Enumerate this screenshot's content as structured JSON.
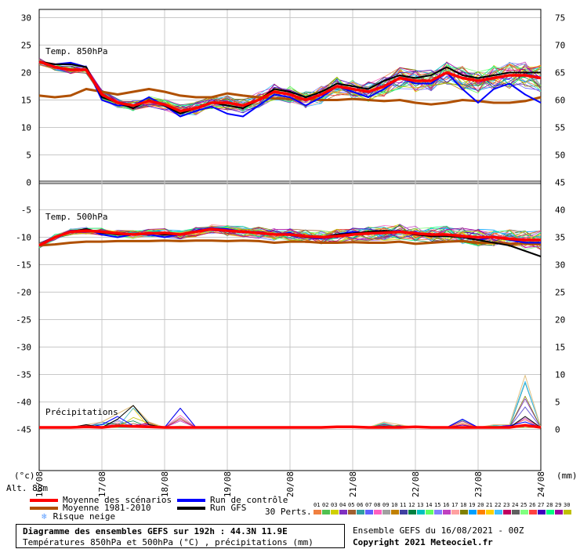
{
  "panels": {
    "temp850_label": "Temp. 850hPa",
    "temp500_label": "Temp. 500hPa",
    "precip_label": "Précipitations"
  },
  "axes": {
    "left_unit": "(°c)",
    "right_unit": "(mm)",
    "altitude": "Alt. 88m",
    "left_ticks": [
      "30",
      "25",
      "20",
      "15",
      "10",
      "5",
      "0",
      "-5",
      "-10",
      "-15",
      "-20",
      "-25",
      "-30",
      "-35",
      "-40",
      "-45"
    ],
    "right_ticks": [
      "75",
      "70",
      "65",
      "60",
      "55",
      "50",
      "45",
      "40",
      "35",
      "30",
      "25",
      "20",
      "15",
      "10",
      "5",
      "0"
    ],
    "date_ticks": [
      "16/08",
      "17/08",
      "18/08",
      "19/08",
      "20/08",
      "21/08",
      "22/08",
      "23/08",
      "24/08"
    ]
  },
  "legend": {
    "mean_scenarios": "Moyenne des scénarios",
    "mean_climate": "Moyenne 1981-2010",
    "snow_risk": "Risque neige",
    "control_run": "Run de contrôle",
    "gfs_run": "Run GFS",
    "perturbations_label": "30 Perts.",
    "perturbation_numbers": [
      "01",
      "02",
      "03",
      "04",
      "05",
      "06",
      "07",
      "08",
      "09",
      "10",
      "11",
      "12",
      "13",
      "14",
      "15",
      "16",
      "17",
      "18",
      "19",
      "20",
      "21",
      "22",
      "23",
      "24",
      "25",
      "26",
      "27",
      "28",
      "29",
      "30"
    ],
    "perturbation_colors": [
      "#f08040",
      "#50c050",
      "#d0d000",
      "#8030c0",
      "#a06030",
      "#30a0a0",
      "#6060ff",
      "#ff60c0",
      "#a0a0a0",
      "#c08000",
      "#4040a0",
      "#008040",
      "#00c0c0",
      "#60ff60",
      "#8080ff",
      "#c040c0",
      "#ffa0a0",
      "#808000",
      "#00a0ff",
      "#ff8000",
      "#ffd000",
      "#40c0ff",
      "#c00060",
      "#606060",
      "#80ff80",
      "#ff4040",
      "#4000c0",
      "#00ff80",
      "#a000a0",
      "#c0c000"
    ]
  },
  "footer": {
    "title": "Diagramme des ensembles GEFS sur 192h : 44.3N 11.9E",
    "subtitle": "Températures 850hPa et 500hPa (°C) , précipitations (mm)",
    "run_info": "Ensemble GEFS du 16/08/2021 - 00Z",
    "copyright": "Copyright 2021 Meteociel.fr"
  },
  "colors": {
    "mean_scenarios": "#ff0000",
    "mean_climate": "#b05000",
    "control_run": "#0000ff",
    "gfs_run": "#000000",
    "snow": "#60a0ff"
  },
  "chart_data": [
    {
      "type": "line",
      "panel": "Temp. 850hPa",
      "xlabel": "",
      "ylabel": "(°c)",
      "x_hours": [
        0,
        6,
        12,
        18,
        24,
        30,
        36,
        42,
        48,
        54,
        60,
        66,
        72,
        78,
        84,
        90,
        96,
        102,
        108,
        114,
        120,
        126,
        132,
        138,
        144,
        150,
        156,
        162,
        168,
        174,
        180,
        186,
        192
      ],
      "series": [
        {
          "name": "Moyenne des scénarios",
          "values": [
            22,
            21,
            20.5,
            20.5,
            16,
            14.5,
            14,
            14.8,
            14.2,
            13,
            13.5,
            14.5,
            14.5,
            14,
            15,
            16.5,
            16,
            15,
            16,
            17.5,
            17,
            16.5,
            17.5,
            19,
            18.5,
            18.5,
            20,
            19,
            18.5,
            19,
            19.5,
            19.5,
            19
          ]
        },
        {
          "name": "Moyenne 1981-2010",
          "values": [
            15.8,
            15.5,
            15.8,
            17,
            16.5,
            16,
            16.5,
            17,
            16.5,
            15.8,
            15.5,
            15.5,
            16.2,
            15.8,
            15.5,
            15.3,
            15.2,
            15.2,
            15,
            15,
            15.2,
            15,
            14.8,
            15,
            14.5,
            14.2,
            14.5,
            15,
            14.8,
            14.5,
            14.5,
            14.8,
            15.5
          ]
        },
        {
          "name": "Run de contrôle",
          "values": [
            22,
            21.5,
            21.8,
            21,
            15,
            14,
            14,
            15.5,
            14,
            12,
            13,
            13.8,
            12.5,
            12,
            14,
            16,
            15.5,
            14,
            15.5,
            17.5,
            16.5,
            15.5,
            17,
            19,
            18,
            18,
            20,
            17,
            14.5,
            17,
            18,
            16,
            14.5
          ]
        },
        {
          "name": "Run GFS",
          "values": [
            22,
            21.5,
            21.5,
            21,
            15.5,
            14.5,
            13.5,
            15,
            14,
            12.5,
            13.5,
            14.5,
            14,
            13.5,
            15,
            17,
            16.5,
            15.5,
            16.5,
            18,
            17.5,
            17,
            18.5,
            19.5,
            19,
            19.5,
            21,
            19.5,
            19,
            19.5,
            20,
            20,
            20
          ]
        }
      ]
    },
    {
      "type": "line",
      "panel": "Temp. 500hPa",
      "xlabel": "",
      "ylabel": "(°c)",
      "x_hours": [
        0,
        6,
        12,
        18,
        24,
        30,
        36,
        42,
        48,
        54,
        60,
        66,
        72,
        78,
        84,
        90,
        96,
        102,
        108,
        114,
        120,
        126,
        132,
        138,
        144,
        150,
        156,
        162,
        168,
        174,
        180,
        186,
        192
      ],
      "series": [
        {
          "name": "Moyenne des scénarios",
          "values": [
            -11.5,
            -10,
            -9,
            -8.8,
            -9,
            -9.3,
            -9.5,
            -9.3,
            -9.2,
            -9.5,
            -9,
            -8.5,
            -8.8,
            -9,
            -9.2,
            -9.5,
            -9.5,
            -9.8,
            -10,
            -9.8,
            -9.5,
            -9.3,
            -9.2,
            -9,
            -9.3,
            -9.5,
            -9.5,
            -9.8,
            -10,
            -10,
            -10.3,
            -10.5,
            -10.5
          ]
        },
        {
          "name": "Moyenne 1981-2010",
          "values": [
            -11.5,
            -11.3,
            -11,
            -10.8,
            -10.8,
            -10.7,
            -10.7,
            -10.7,
            -10.6,
            -10.7,
            -10.6,
            -10.6,
            -10.7,
            -10.6,
            -10.7,
            -11,
            -10.8,
            -10.8,
            -11,
            -11,
            -10.9,
            -11,
            -11,
            -10.8,
            -11.2,
            -11,
            -10.8,
            -10.7,
            -11,
            -11,
            -11.2,
            -11.2,
            -11.3
          ]
        },
        {
          "name": "Run de contrôle",
          "values": [
            -11.5,
            -10,
            -9,
            -8.5,
            -9.5,
            -10,
            -9.5,
            -9.5,
            -10,
            -9.5,
            -8.8,
            -8.3,
            -8.5,
            -9,
            -9,
            -9.5,
            -9.2,
            -10,
            -10.2,
            -9.5,
            -9,
            -9.3,
            -9,
            -8.8,
            -9.5,
            -9.8,
            -9.5,
            -10,
            -10.5,
            -10,
            -10.5,
            -11,
            -11
          ]
        },
        {
          "name": "Run GFS",
          "values": [
            -11.5,
            -10,
            -9,
            -8.5,
            -9.2,
            -9.5,
            -9.5,
            -9.2,
            -9.5,
            -9.5,
            -9,
            -8.5,
            -8.8,
            -9,
            -9.3,
            -9.5,
            -9.5,
            -10,
            -10,
            -9.5,
            -9.3,
            -9,
            -8.8,
            -9,
            -9.5,
            -9.8,
            -9.8,
            -10,
            -10.5,
            -11,
            -11.5,
            -12.5,
            -13.5
          ]
        }
      ]
    },
    {
      "type": "line",
      "panel": "Précipitations",
      "xlabel": "",
      "ylabel": "(mm)",
      "x_hours": [
        0,
        6,
        12,
        18,
        24,
        30,
        36,
        42,
        48,
        54,
        60,
        66,
        72,
        78,
        84,
        90,
        96,
        102,
        108,
        114,
        120,
        126,
        132,
        138,
        144,
        150,
        156,
        162,
        168,
        174,
        180,
        186,
        192
      ],
      "series": [
        {
          "name": "Moyenne des scénarios",
          "values": [
            0,
            0,
            0,
            0.1,
            0,
            0.3,
            0.2,
            0.1,
            0,
            0,
            0,
            0,
            0,
            0,
            0,
            0,
            0,
            0,
            0,
            0.1,
            0.1,
            0,
            0,
            0,
            0.1,
            0,
            0,
            0,
            0,
            0,
            0,
            0.4,
            0
          ]
        },
        {
          "name": "Run de contrôle",
          "values": [
            0,
            0,
            0,
            0,
            0.5,
            2,
            0.3,
            0,
            0,
            3.5,
            0,
            0,
            0,
            0,
            0,
            0,
            0,
            0,
            0,
            0,
            0,
            0,
            0,
            0,
            0,
            0,
            0,
            1.5,
            0,
            0,
            0.3,
            1,
            0
          ]
        },
        {
          "name": "Run GFS",
          "values": [
            0,
            0,
            0,
            0.5,
            0,
            1.5,
            4,
            0.5,
            0,
            0,
            0,
            0,
            0,
            0,
            0,
            0,
            0,
            0,
            0,
            0,
            0,
            0,
            0.2,
            0,
            0,
            0,
            0,
            0,
            0,
            0,
            0,
            2,
            0
          ]
        },
        {
          "name": "Max perturbations",
          "values": [
            0,
            0,
            0,
            0.5,
            1,
            2.5,
            4,
            1,
            0,
            3.5,
            0,
            0,
            0,
            0,
            0,
            0,
            0,
            0,
            0,
            0,
            0,
            0,
            1,
            0.5,
            0,
            0,
            0,
            1.5,
            0,
            0.5,
            0.5,
            9.5,
            0
          ]
        }
      ]
    }
  ]
}
